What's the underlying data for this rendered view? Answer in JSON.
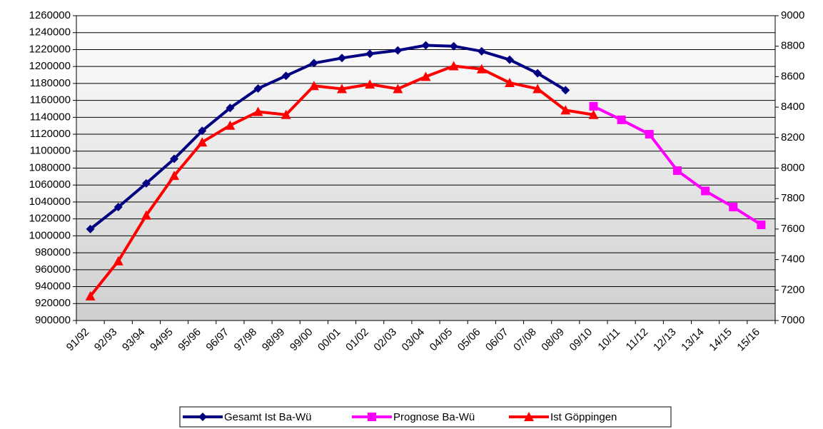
{
  "chart_data": {
    "type": "line",
    "categories": [
      "91/92",
      "92/93",
      "93/94",
      "94/95",
      "95/96",
      "96/97",
      "97/98",
      "98/99",
      "99/00",
      "00/01",
      "01/02",
      "02/03",
      "03/04",
      "04/05",
      "05/06",
      "06/07",
      "07/08",
      "08/09",
      "09/10",
      "10/11",
      "11/12",
      "12/13",
      "13/14",
      "14/15",
      "15/16"
    ],
    "series": [
      {
        "name": "Gesamt Ist Ba-Wü",
        "color": "#000080",
        "marker": "diamond",
        "values": [
          1008000,
          1034000,
          1062000,
          1091000,
          1124000,
          1151000,
          1174000,
          1189000,
          1204000,
          1210000,
          1215000,
          1219000,
          1225000,
          1224000,
          1218000,
          1208000,
          1192000,
          1172000,
          null,
          null,
          null,
          null,
          null,
          null,
          null
        ]
      },
      {
        "name": "Prognose Ba-Wü",
        "color": "#ff00ff",
        "marker": "square",
        "values": [
          null,
          null,
          null,
          null,
          null,
          null,
          null,
          null,
          null,
          null,
          null,
          null,
          null,
          null,
          null,
          null,
          null,
          null,
          1153000,
          1137000,
          1120000,
          1077000,
          1053000,
          1034000,
          1013000
        ]
      },
      {
        "name": "Ist Göppingen",
        "color": "#ff0000",
        "marker": "triangle",
        "axis": "y2",
        "values": [
          7160,
          7390,
          7690,
          7950,
          8170,
          8280,
          8370,
          8350,
          8540,
          8520,
          8550,
          8520,
          8600,
          8670,
          8650,
          8560,
          8520,
          8380,
          8350,
          null,
          null,
          null,
          null,
          null,
          null
        ]
      }
    ],
    "ylim": [
      900000,
      1260000
    ],
    "yticks": [
      900000,
      920000,
      940000,
      960000,
      980000,
      1000000,
      1020000,
      1040000,
      1060000,
      1080000,
      1100000,
      1120000,
      1140000,
      1160000,
      1180000,
      1200000,
      1220000,
      1240000,
      1260000
    ],
    "y2lim": [
      7000,
      9000
    ],
    "y2ticks": [
      7000,
      7200,
      7400,
      7600,
      7800,
      8000,
      8200,
      8400,
      8600,
      8800,
      9000
    ],
    "grid": true,
    "legend": "bottom"
  }
}
